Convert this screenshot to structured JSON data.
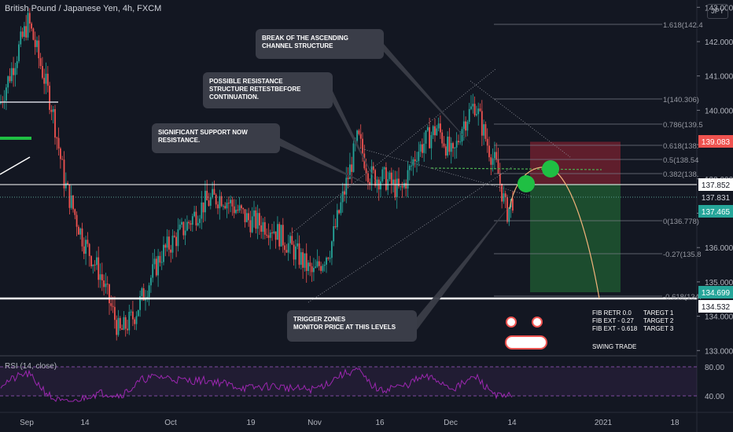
{
  "header": {
    "title": "British Pound / Japanese Yen, 4h, FXCM",
    "currency": "JPY"
  },
  "rsi": {
    "title": "RSI (14, close)",
    "levels": [
      "80.00",
      "40.00"
    ]
  },
  "axis": {
    "price_ticks": [
      "143.000",
      "142.000",
      "141.000",
      "140.000",
      "139.000",
      "138.000",
      "137.000",
      "136.000",
      "135.000",
      "134.000",
      "133.000"
    ],
    "time_ticks": [
      "Sep",
      "14",
      "Oct",
      "19",
      "Nov",
      "16",
      "Dec",
      "14",
      "2021",
      "18"
    ]
  },
  "price_labels": {
    "red": "139.083",
    "white_top": "137.852",
    "plain": "137.831",
    "green_mid": "137.465",
    "green_low": "134.699",
    "white_low": "134.532"
  },
  "fib_levels": [
    {
      "label": "1.618(142.4"
    },
    {
      "label": "1(140.306)"
    },
    {
      "label": "0.786(139.5"
    },
    {
      "label": "0.618(138."
    },
    {
      "label": "0.5(138.54"
    },
    {
      "label": "0.382(138."
    },
    {
      "label": "0(136.778)"
    },
    {
      "label": "-0.27(135.8"
    },
    {
      "label": "-0.618(134."
    }
  ],
  "callouts": [
    {
      "line1": "BREAK OF THE ASCENDING",
      "line2": "CHANNEL STRUCTURE",
      "line3": ""
    },
    {
      "line1": "POSSIBLE RESISTANCE",
      "line2": "STRUCTURE RETESTBEFORE",
      "line3": "CONTINUATION."
    },
    {
      "line1": "SIGNIFICANT SUPPORT NOW",
      "line2": "RESISTANCE.",
      "line3": ""
    },
    {
      "line1": "TRIGGER ZONES",
      "line2": "MONITOR PRICE AT THIS LEVELS",
      "line3": ""
    }
  ],
  "targets": {
    "lines": [
      {
        "left": "FIB RETR 0.0",
        "right": "TAREGT 1"
      },
      {
        "left": "FIB EXT - 0.27",
        "right": "TARGET 2"
      },
      {
        "left": "FIB EXT - 0.618",
        "right": "TARGET 3"
      }
    ],
    "note": "SWING TRADE"
  },
  "chart_data": {
    "type": "candlestick",
    "title": "British Pound / Japanese Yen, 4h, FXCM",
    "y_range": [
      132.9,
      143.3
    ],
    "x_range": [
      "Sep",
      "18"
    ],
    "price_path": [
      {
        "x": "Sep 1",
        "y": 140.2
      },
      {
        "x": "Sep 3",
        "y": 142.6
      },
      {
        "x": "Sep 4",
        "y": 141.8
      },
      {
        "x": "Sep 8",
        "y": 140.1
      },
      {
        "x": "Sep 11",
        "y": 137.9
      },
      {
        "x": "Sep 14",
        "y": 136.2
      },
      {
        "x": "Sep 18",
        "y": 135.2
      },
      {
        "x": "Sep 21",
        "y": 133.5
      },
      {
        "x": "Sep 23",
        "y": 134.0
      },
      {
        "x": "Sep 28",
        "y": 135.8
      },
      {
        "x": "Oct 2",
        "y": 136.5
      },
      {
        "x": "Oct 8",
        "y": 137.3
      },
      {
        "x": "Oct 13",
        "y": 137.5
      },
      {
        "x": "Oct 19",
        "y": 136.8
      },
      {
        "x": "Oct 23",
        "y": 136.6
      },
      {
        "x": "Oct 28",
        "y": 135.8
      },
      {
        "x": "Nov 2",
        "y": 135.2
      },
      {
        "x": "Nov 6",
        "y": 136.0
      },
      {
        "x": "Nov 10",
        "y": 139.2
      },
      {
        "x": "Nov 13",
        "y": 138.1
      },
      {
        "x": "Nov 17",
        "y": 138.0
      },
      {
        "x": "Nov 20",
        "y": 137.6
      },
      {
        "x": "Nov 24",
        "y": 138.8
      },
      {
        "x": "Nov 27",
        "y": 139.5
      },
      {
        "x": "Dec 2",
        "y": 138.6
      },
      {
        "x": "Dec 4",
        "y": 139.6
      },
      {
        "x": "Dec 7",
        "y": 140.2
      },
      {
        "x": "Dec 9",
        "y": 139.0
      },
      {
        "x": "Dec 10",
        "y": 138.3
      },
      {
        "x": "Dec 11",
        "y": 137.0
      },
      {
        "x": "Dec 14",
        "y": 137.4
      }
    ],
    "horizontal_levels": [
      137.852,
      134.532
    ],
    "position": {
      "entry": 137.852,
      "stop": 139.083,
      "target": 134.699
    }
  }
}
